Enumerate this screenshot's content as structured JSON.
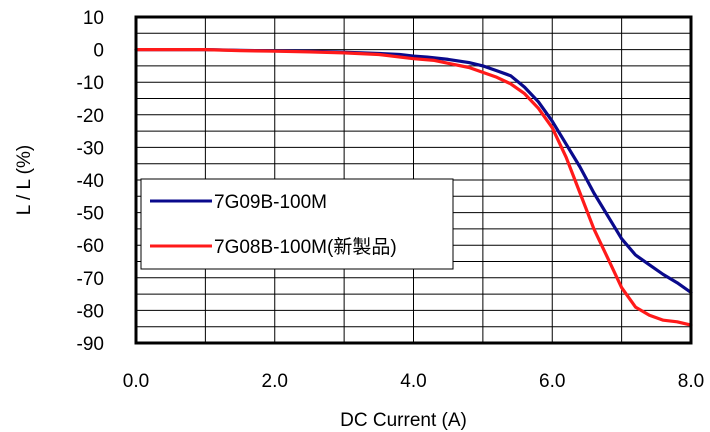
{
  "chart_data": {
    "type": "line",
    "title": "",
    "xlabel": "DC Current (A)",
    "ylabel": "L / L  (%)",
    "xlim": [
      0,
      8
    ],
    "ylim": [
      -90,
      10
    ],
    "x_tick_labels": [
      "0.0",
      "2.0",
      "4.0",
      "6.0",
      "8.0"
    ],
    "y_tick_labels": [
      "10",
      "0",
      "-10",
      "-20",
      "-30",
      "-40",
      "-50",
      "-60",
      "-70",
      "-80",
      "-90"
    ],
    "grid": true,
    "legend_position": "left-middle",
    "series": [
      {
        "name": "7G09B-100M",
        "color": "#0a0a8c",
        "points": [
          [
            0,
            0
          ],
          [
            0.5,
            0
          ],
          [
            1.0,
            0
          ],
          [
            1.5,
            -0.2
          ],
          [
            2.0,
            -0.4
          ],
          [
            2.5,
            -0.5
          ],
          [
            3.0,
            -0.8
          ],
          [
            3.5,
            -1.2
          ],
          [
            3.8,
            -1.5
          ],
          [
            4.0,
            -2.0
          ],
          [
            4.2,
            -2.3
          ],
          [
            4.5,
            -3.0
          ],
          [
            4.8,
            -4.0
          ],
          [
            5.0,
            -5.0
          ],
          [
            5.2,
            -6.5
          ],
          [
            5.4,
            -8.0
          ],
          [
            5.6,
            -11.5
          ],
          [
            5.8,
            -16.0
          ],
          [
            6.0,
            -22.0
          ],
          [
            6.2,
            -29.0
          ],
          [
            6.4,
            -36.0
          ],
          [
            6.6,
            -44.0
          ],
          [
            6.8,
            -51.0
          ],
          [
            7.0,
            -58.0
          ],
          [
            7.2,
            -63.0
          ],
          [
            7.4,
            -66.0
          ],
          [
            7.6,
            -69.0
          ],
          [
            7.8,
            -71.5
          ],
          [
            8.0,
            -74.5
          ]
        ]
      },
      {
        "name": "7G08B-100M(新製品)",
        "color": "#ff1a1a",
        "points": [
          [
            0,
            0
          ],
          [
            0.5,
            0
          ],
          [
            1.0,
            0
          ],
          [
            1.5,
            -0.3
          ],
          [
            2.0,
            -0.5
          ],
          [
            2.5,
            -0.7
          ],
          [
            3.0,
            -1.0
          ],
          [
            3.5,
            -1.5
          ],
          [
            4.0,
            -2.8
          ],
          [
            4.3,
            -3.3
          ],
          [
            4.5,
            -4.2
          ],
          [
            4.8,
            -5.5
          ],
          [
            5.0,
            -7.0
          ],
          [
            5.2,
            -8.5
          ],
          [
            5.4,
            -10.5
          ],
          [
            5.6,
            -13.5
          ],
          [
            5.8,
            -18.0
          ],
          [
            6.0,
            -24.0
          ],
          [
            6.2,
            -33.0
          ],
          [
            6.4,
            -44.0
          ],
          [
            6.6,
            -55.0
          ],
          [
            6.8,
            -64.0
          ],
          [
            7.0,
            -73.0
          ],
          [
            7.2,
            -79.0
          ],
          [
            7.4,
            -81.5
          ],
          [
            7.6,
            -83.0
          ],
          [
            7.8,
            -83.5
          ],
          [
            8.0,
            -84.5
          ]
        ]
      }
    ]
  }
}
